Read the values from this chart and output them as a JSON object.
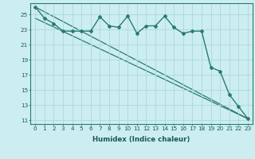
{
  "xlabel": "Humidex (Indice chaleur)",
  "bg_color": "#cceef0",
  "line_color": "#2a7a72",
  "grid_color": "#aad8dc",
  "ylim": [
    10.5,
    26.5
  ],
  "xlim": [
    -0.5,
    23.5
  ],
  "yticks": [
    11,
    13,
    15,
    17,
    19,
    21,
    23,
    25
  ],
  "xticks": [
    0,
    1,
    2,
    3,
    4,
    5,
    6,
    7,
    8,
    9,
    10,
    11,
    12,
    13,
    14,
    15,
    16,
    17,
    18,
    19,
    20,
    21,
    22,
    23
  ],
  "series_main": {
    "x": [
      0,
      1,
      2,
      3,
      4,
      5,
      6,
      7,
      8,
      9,
      10,
      11,
      12,
      13,
      14,
      15,
      16,
      17,
      18,
      19,
      20,
      21,
      22,
      23
    ],
    "y": [
      26.0,
      24.5,
      23.8,
      22.8,
      22.8,
      22.8,
      22.8,
      24.7,
      23.5,
      23.3,
      24.8,
      22.5,
      23.5,
      23.5,
      24.8,
      23.3,
      22.5,
      22.8,
      22.8,
      18.0,
      17.5,
      14.4,
      12.8,
      11.2
    ],
    "marker": "D",
    "markersize": 2.0,
    "linewidth": 1.0
  },
  "series_linear": [
    {
      "x": [
        0,
        23
      ],
      "y": [
        26.0,
        11.2
      ],
      "linewidth": 0.9
    },
    {
      "x": [
        0,
        23
      ],
      "y": [
        24.5,
        11.2
      ],
      "linewidth": 0.9
    }
  ],
  "tick_fontsize": 5.2,
  "xlabel_fontsize": 6.2,
  "tick_color": "#1a5a54",
  "xlabel_color": "#1a5a54"
}
